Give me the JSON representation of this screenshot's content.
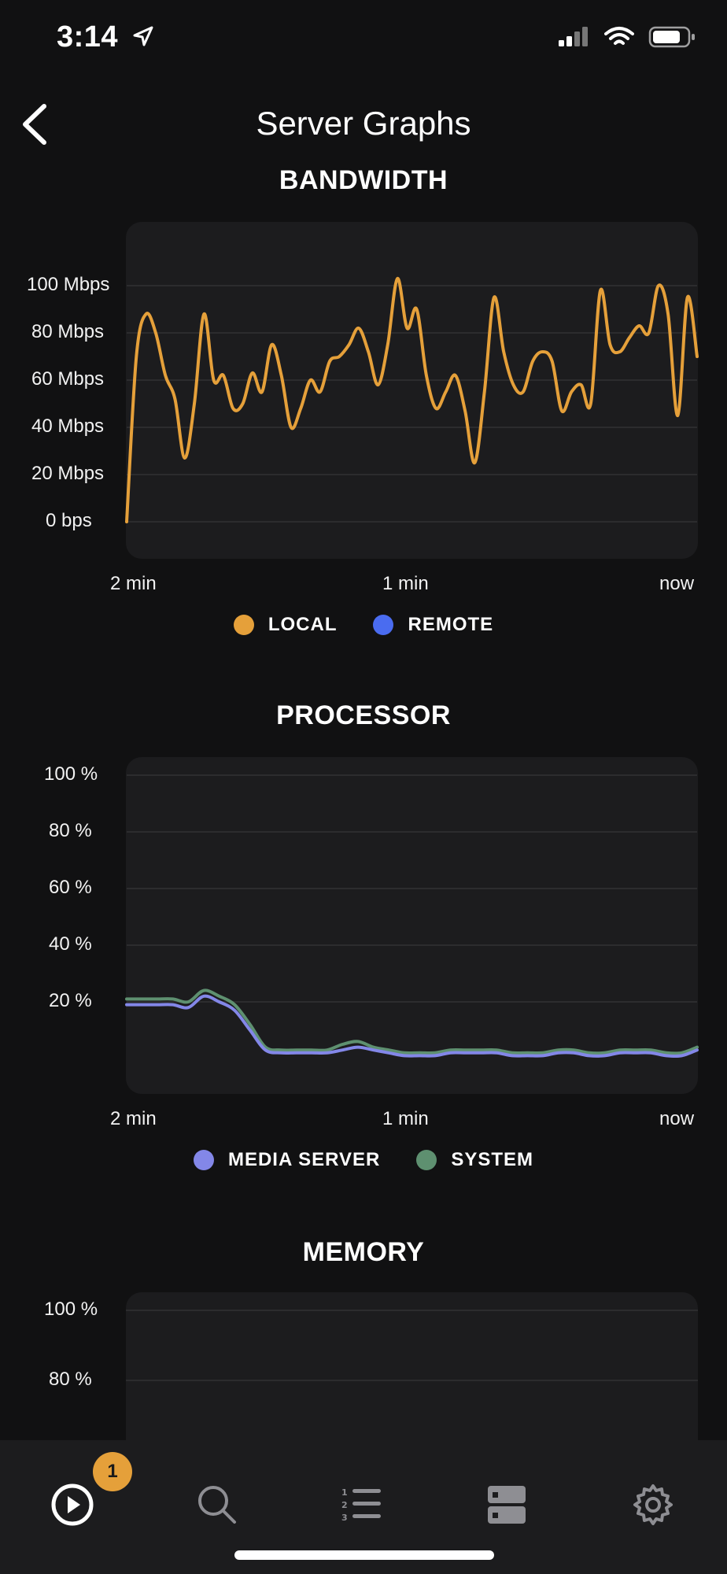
{
  "status": {
    "time": "3:14"
  },
  "nav": {
    "title": "Server Graphs"
  },
  "colors": {
    "local": "#e5a03a",
    "remote": "#4a6cf0",
    "media_server": "#8387e8",
    "system": "#5e9070",
    "badge": "#e5a03a"
  },
  "chart_data": [
    {
      "type": "line",
      "title": "BANDWIDTH",
      "y_ticks": [
        "100 Mbps",
        "80 Mbps",
        "60 Mbps",
        "40 Mbps",
        "20 Mbps",
        "0 bps"
      ],
      "x_ticks": [
        "2 min",
        "1 min",
        "now"
      ],
      "ylim": [
        0,
        100
      ],
      "grid": true,
      "legend_position": "bottom",
      "series": [
        {
          "name": "LOCAL",
          "color": "#e5a03a",
          "values": [
            0,
            70,
            88,
            80,
            62,
            52,
            27,
            50,
            88,
            60,
            62,
            48,
            50,
            63,
            55,
            75,
            62,
            40,
            48,
            60,
            55,
            68,
            70,
            75,
            82,
            72,
            58,
            75,
            103,
            82,
            90,
            62,
            48,
            55,
            62,
            47,
            25,
            55,
            95,
            72,
            58,
            55,
            68,
            72,
            68,
            47,
            55,
            58,
            50,
            98,
            75,
            72,
            78,
            83,
            80,
            100,
            88,
            45,
            95,
            70
          ]
        },
        {
          "name": "REMOTE",
          "color": "#4a6cf0",
          "values": []
        }
      ]
    },
    {
      "type": "line",
      "title": "PROCESSOR",
      "y_ticks": [
        "100 %",
        "80 %",
        "60 %",
        "40 %",
        "20 %"
      ],
      "x_ticks": [
        "2 min",
        "1 min",
        "now"
      ],
      "ylim": [
        0,
        100
      ],
      "grid": true,
      "legend_position": "bottom",
      "series": [
        {
          "name": "MEDIA SERVER",
          "color": "#8387e8",
          "values": [
            19,
            19,
            19,
            19,
            18,
            22,
            20,
            17,
            10,
            3,
            2,
            2,
            2,
            2,
            3,
            4,
            3,
            2,
            1,
            1,
            1,
            2,
            2,
            2,
            2,
            1,
            1,
            1,
            2,
            2,
            1,
            1,
            2,
            2,
            2,
            1,
            1,
            3
          ]
        },
        {
          "name": "SYSTEM",
          "color": "#5e9070",
          "values": [
            21,
            21,
            21,
            21,
            20,
            24,
            22,
            19,
            12,
            4,
            3,
            3,
            3,
            3,
            5,
            6,
            4,
            3,
            2,
            2,
            2,
            3,
            3,
            3,
            3,
            2,
            2,
            2,
            3,
            3,
            2,
            2,
            3,
            3,
            3,
            2,
            2,
            4
          ]
        }
      ]
    },
    {
      "type": "line",
      "title": "MEMORY",
      "y_ticks": [
        "100 %",
        "80 %"
      ],
      "x_ticks": [],
      "ylim": [
        0,
        100
      ],
      "grid": true,
      "series": []
    }
  ],
  "tabs": [
    {
      "name": "now-playing",
      "badge": "1"
    },
    {
      "name": "search"
    },
    {
      "name": "queue"
    },
    {
      "name": "servers"
    },
    {
      "name": "settings"
    }
  ]
}
